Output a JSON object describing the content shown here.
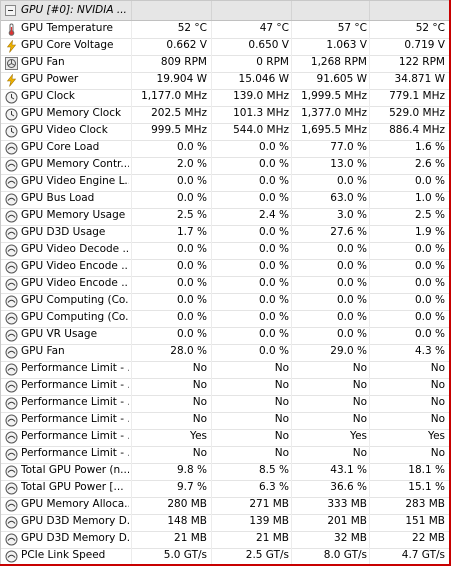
{
  "header": {
    "title": "GPU [#0]: NVIDIA ..."
  },
  "rows": [
    {
      "icon": "thermometer-icon",
      "label": "GPU Temperature",
      "values": [
        "52 °C",
        "47 °C",
        "57 °C",
        "52 °C"
      ]
    },
    {
      "icon": "lightning-icon",
      "label": "GPU Core Voltage",
      "values": [
        "0.662 V",
        "0.650 V",
        "1.063 V",
        "0.719 V"
      ]
    },
    {
      "icon": "fan-icon",
      "label": "GPU Fan",
      "values": [
        "809 RPM",
        "0 RPM",
        "1,268 RPM",
        "122 RPM"
      ]
    },
    {
      "icon": "lightning-icon",
      "label": "GPU Power",
      "values": [
        "19.904 W",
        "15.046 W",
        "91.605 W",
        "34.871 W"
      ]
    },
    {
      "icon": "clock-icon",
      "label": "GPU Clock",
      "values": [
        "1,177.0 MHz",
        "139.0 MHz",
        "1,999.5 MHz",
        "779.1 MHz"
      ]
    },
    {
      "icon": "clock-icon",
      "label": "GPU Memory Clock",
      "values": [
        "202.5 MHz",
        "101.3 MHz",
        "1,377.0 MHz",
        "529.0 MHz"
      ]
    },
    {
      "icon": "clock-icon",
      "label": "GPU Video Clock",
      "values": [
        "999.5 MHz",
        "544.0 MHz",
        "1,695.5 MHz",
        "886.4 MHz"
      ]
    },
    {
      "icon": "gauge-icon",
      "label": "GPU Core Load",
      "values": [
        "0.0 %",
        "0.0 %",
        "77.0 %",
        "1.6 %"
      ]
    },
    {
      "icon": "gauge-icon",
      "label": "GPU Memory Contr...",
      "values": [
        "2.0 %",
        "0.0 %",
        "13.0 %",
        "2.6 %"
      ]
    },
    {
      "icon": "gauge-icon",
      "label": "GPU Video Engine L...",
      "values": [
        "0.0 %",
        "0.0 %",
        "0.0 %",
        "0.0 %"
      ]
    },
    {
      "icon": "gauge-icon",
      "label": "GPU Bus Load",
      "values": [
        "0.0 %",
        "0.0 %",
        "63.0 %",
        "1.0 %"
      ]
    },
    {
      "icon": "gauge-icon",
      "label": "GPU Memory Usage",
      "values": [
        "2.5 %",
        "2.4 %",
        "3.0 %",
        "2.5 %"
      ]
    },
    {
      "icon": "gauge-icon",
      "label": "GPU D3D Usage",
      "values": [
        "1.7 %",
        "0.0 %",
        "27.6 %",
        "1.9 %"
      ]
    },
    {
      "icon": "gauge-icon",
      "label": "GPU Video Decode ...",
      "values": [
        "0.0 %",
        "0.0 %",
        "0.0 %",
        "0.0 %"
      ]
    },
    {
      "icon": "gauge-icon",
      "label": "GPU Video Encode ...",
      "values": [
        "0.0 %",
        "0.0 %",
        "0.0 %",
        "0.0 %"
      ]
    },
    {
      "icon": "gauge-icon",
      "label": "GPU Video Encode ...",
      "values": [
        "0.0 %",
        "0.0 %",
        "0.0 %",
        "0.0 %"
      ]
    },
    {
      "icon": "gauge-icon",
      "label": "GPU Computing (Co...",
      "values": [
        "0.0 %",
        "0.0 %",
        "0.0 %",
        "0.0 %"
      ]
    },
    {
      "icon": "gauge-icon",
      "label": "GPU Computing (Co...",
      "values": [
        "0.0 %",
        "0.0 %",
        "0.0 %",
        "0.0 %"
      ]
    },
    {
      "icon": "gauge-icon",
      "label": "GPU VR Usage",
      "values": [
        "0.0 %",
        "0.0 %",
        "0.0 %",
        "0.0 %"
      ]
    },
    {
      "icon": "gauge-icon",
      "label": "GPU Fan",
      "values": [
        "28.0 %",
        "0.0 %",
        "29.0 %",
        "4.3 %"
      ]
    },
    {
      "icon": "gauge-icon",
      "label": "Performance Limit - ...",
      "values": [
        "No",
        "No",
        "No",
        "No"
      ]
    },
    {
      "icon": "gauge-icon",
      "label": "Performance Limit - ...",
      "values": [
        "No",
        "No",
        "No",
        "No"
      ]
    },
    {
      "icon": "gauge-icon",
      "label": "Performance Limit - ...",
      "values": [
        "No",
        "No",
        "No",
        "No"
      ]
    },
    {
      "icon": "gauge-icon",
      "label": "Performance Limit - ...",
      "values": [
        "No",
        "No",
        "No",
        "No"
      ]
    },
    {
      "icon": "gauge-icon",
      "label": "Performance Limit - ...",
      "values": [
        "Yes",
        "No",
        "Yes",
        "Yes"
      ]
    },
    {
      "icon": "gauge-icon",
      "label": "Performance Limit - ...",
      "values": [
        "No",
        "No",
        "No",
        "No"
      ]
    },
    {
      "icon": "gauge-icon",
      "label": "Total GPU Power (n...",
      "values": [
        "9.8 %",
        "8.5 %",
        "43.1 %",
        "18.1 %"
      ]
    },
    {
      "icon": "gauge-icon",
      "label": "Total GPU Power [...",
      "values": [
        "9.7 %",
        "6.3 %",
        "36.6 %",
        "15.1 %"
      ]
    },
    {
      "icon": "gauge-icon",
      "label": "GPU Memory Alloca...",
      "values": [
        "280 MB",
        "271 MB",
        "333 MB",
        "283 MB"
      ]
    },
    {
      "icon": "gauge-icon",
      "label": "GPU D3D Memory D...",
      "values": [
        "148 MB",
        "139 MB",
        "201 MB",
        "151 MB"
      ]
    },
    {
      "icon": "gauge-icon",
      "label": "GPU D3D Memory D...",
      "values": [
        "21 MB",
        "21 MB",
        "32 MB",
        "22 MB"
      ]
    },
    {
      "icon": "gauge-icon",
      "label": "PCIe Link Speed",
      "values": [
        "5.0 GT/s",
        "2.5 GT/s",
        "8.0 GT/s",
        "4.7 GT/s"
      ]
    }
  ]
}
